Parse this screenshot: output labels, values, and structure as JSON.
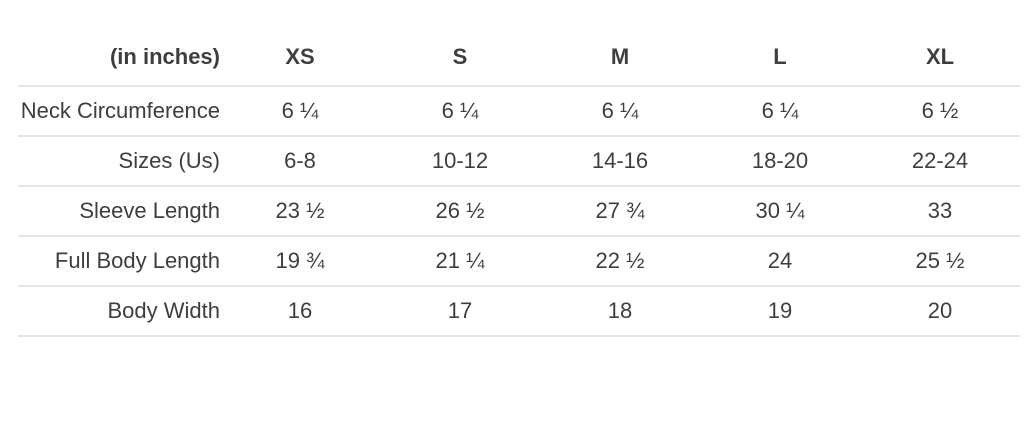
{
  "chart_data": {
    "type": "table",
    "unit_label": "(in inches)",
    "columns": [
      "XS",
      "S",
      "M",
      "L",
      "XL"
    ],
    "rows": [
      {
        "label": "Neck Circumference",
        "values": [
          "6 ¼",
          "6 ¼",
          "6 ¼",
          "6 ¼",
          "6 ½"
        ]
      },
      {
        "label": "Sizes (Us)",
        "values": [
          "6-8",
          "10-12",
          "14-16",
          "18-20",
          "22-24"
        ]
      },
      {
        "label": "Sleeve Length",
        "values": [
          "23 ½",
          "26 ½",
          "27 ¾",
          "30 ¼",
          "33"
        ]
      },
      {
        "label": "Full Body Length",
        "values": [
          "19 ¾",
          "21 ¼",
          "22 ½",
          "24",
          "25 ½"
        ]
      },
      {
        "label": "Body Width",
        "values": [
          "16",
          "17",
          "18",
          "19",
          "20"
        ]
      }
    ],
    "layout": {
      "header_row": true,
      "label_column_align": "right",
      "value_align": "center",
      "grid": false,
      "row_separators": true
    }
  },
  "style": {
    "text_color": "#3e3e3e",
    "row_border_color": "#e4e4e4",
    "background": "#ffffff"
  }
}
